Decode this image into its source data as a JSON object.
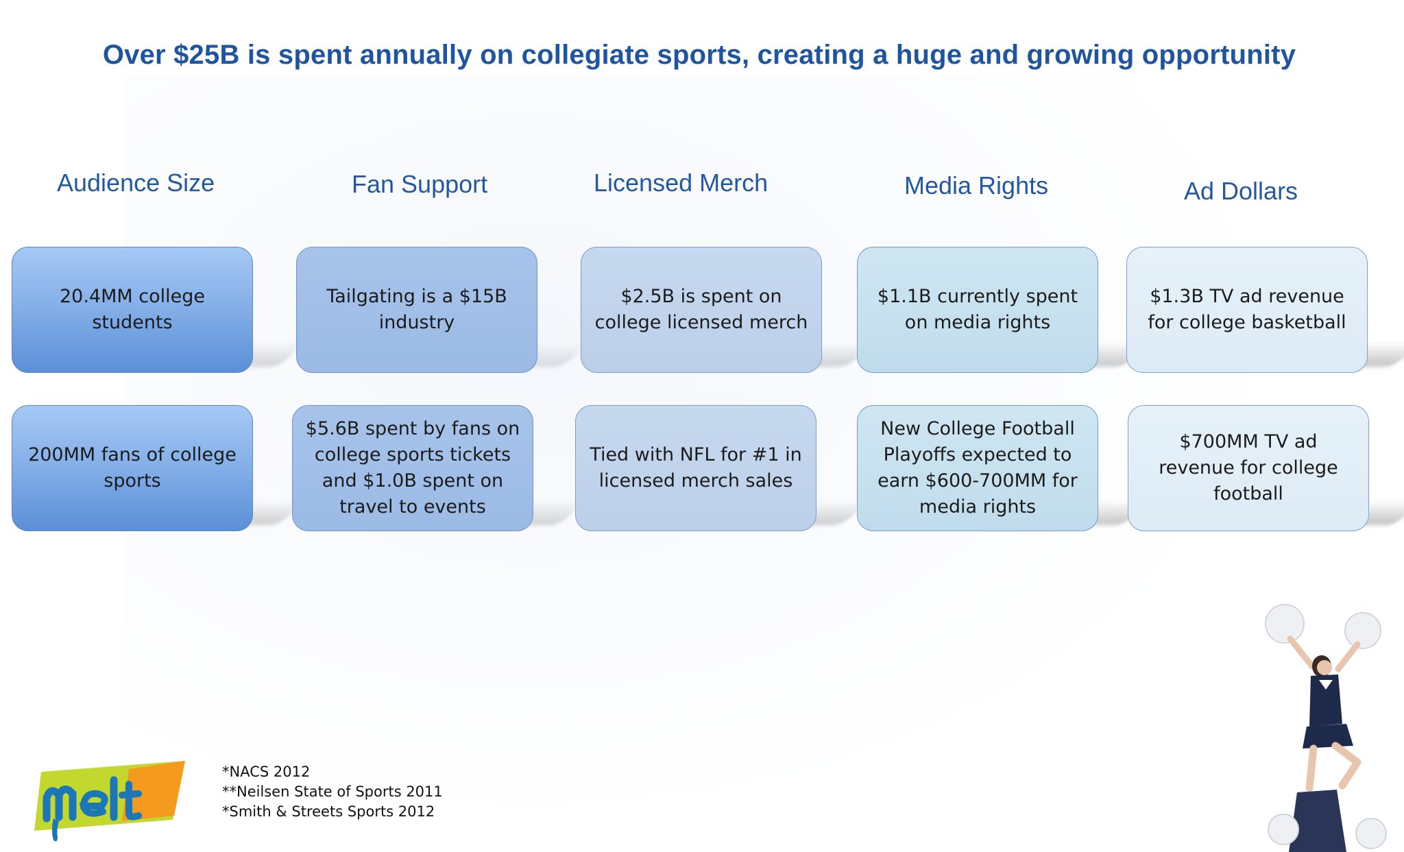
{
  "title": "Over $25B is spent annually on collegiate sports, creating a huge and growing opportunity",
  "columns": [
    {
      "heading": "Audience Size",
      "top": "20.4MM college students",
      "bottom": "200MM fans of college sports"
    },
    {
      "heading": "Fan Support",
      "top": "Tailgating is a $15B industry",
      "bottom": "$5.6B spent by fans on college sports tickets and $1.0B spent on travel to events"
    },
    {
      "heading": "Licensed Merch",
      "top": "$2.5B is spent on college licensed merch",
      "bottom": "Tied with NFL for #1 in licensed merch sales"
    },
    {
      "heading": "Media Rights",
      "top": "$1.1B currently spent on media rights",
      "bottom": "New College Football Playoffs expected to earn $600-700MM for media rights"
    },
    {
      "heading": "Ad Dollars",
      "top": "$1.3B TV ad revenue for college basketball",
      "bottom": "$700MM TV ad revenue for college football"
    }
  ],
  "footnotes": [
    "*NACS 2012",
    "**Neilsen State of Sports 2011",
    "*Smith & Streets Sports 2012"
  ],
  "logo": {
    "text": "melt",
    "colors": {
      "green": "#c2d82f",
      "orange": "#f39a1f",
      "blue": "#1b77b8"
    }
  },
  "colors": {
    "title": "#1f55a0",
    "heading": "#23579f"
  }
}
